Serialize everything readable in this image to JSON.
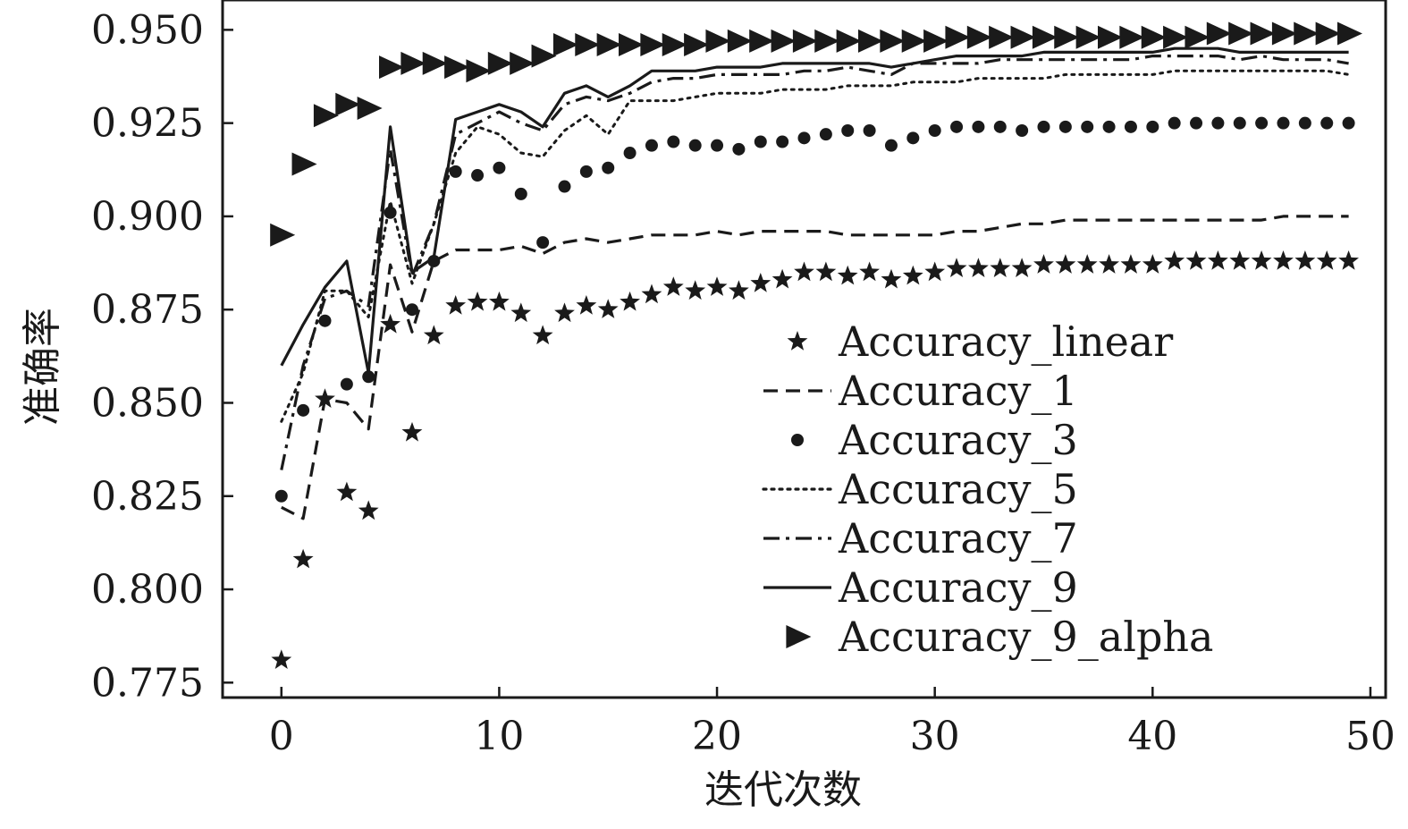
{
  "chart_data": {
    "type": "line",
    "title": "",
    "xlabel": "迭代次数",
    "ylabel": "准确率",
    "xlim": [
      -2.7,
      50.7
    ],
    "ylim": [
      0.771,
      0.958
    ],
    "xticks": [
      0,
      10,
      20,
      30,
      40,
      50
    ],
    "xtick_labels": [
      "0",
      "10",
      "20",
      "30",
      "40",
      "50"
    ],
    "yticks": [
      0.775,
      0.8,
      0.825,
      0.85,
      0.875,
      0.9,
      0.925,
      0.95
    ],
    "ytick_labels": [
      "0.775",
      "0.800",
      "0.825",
      "0.850",
      "0.875",
      "0.900",
      "0.925",
      "0.950"
    ],
    "grid": false,
    "legend_position": "center-right",
    "x": [
      0,
      1,
      2,
      3,
      4,
      5,
      6,
      7,
      8,
      9,
      10,
      11,
      12,
      13,
      14,
      15,
      16,
      17,
      18,
      19,
      20,
      21,
      22,
      23,
      24,
      25,
      26,
      27,
      28,
      29,
      30,
      31,
      32,
      33,
      34,
      35,
      36,
      37,
      38,
      39,
      40,
      41,
      42,
      43,
      44,
      45,
      46,
      47,
      48,
      49
    ],
    "series": [
      {
        "name": "Accuracy_linear",
        "style": "star",
        "values": [
          0.781,
          0.808,
          0.851,
          0.826,
          0.821,
          0.871,
          0.842,
          0.868,
          0.876,
          0.877,
          0.877,
          0.874,
          0.868,
          0.874,
          0.876,
          0.875,
          0.877,
          0.879,
          0.881,
          0.88,
          0.881,
          0.88,
          0.882,
          0.883,
          0.885,
          0.885,
          0.884,
          0.885,
          0.883,
          0.884,
          0.885,
          0.886,
          0.886,
          0.886,
          0.886,
          0.887,
          0.887,
          0.887,
          0.887,
          0.887,
          0.887,
          0.888,
          0.888,
          0.888,
          0.888,
          0.888,
          0.888,
          0.888,
          0.888,
          0.888
        ]
      },
      {
        "name": "Accuracy_1",
        "style": "dashed",
        "values": [
          0.822,
          0.819,
          0.851,
          0.85,
          0.843,
          0.887,
          0.869,
          0.888,
          0.891,
          0.891,
          0.891,
          0.892,
          0.89,
          0.893,
          0.894,
          0.893,
          0.894,
          0.895,
          0.895,
          0.895,
          0.896,
          0.895,
          0.896,
          0.896,
          0.896,
          0.896,
          0.895,
          0.895,
          0.895,
          0.895,
          0.895,
          0.896,
          0.896,
          0.897,
          0.898,
          0.898,
          0.899,
          0.899,
          0.899,
          0.899,
          0.899,
          0.899,
          0.899,
          0.899,
          0.899,
          0.899,
          0.9,
          0.9,
          0.9,
          0.9
        ]
      },
      {
        "name": "Accuracy_3",
        "style": "dot",
        "values": [
          0.825,
          0.848,
          0.872,
          0.855,
          0.857,
          0.901,
          0.875,
          0.888,
          0.912,
          0.911,
          0.913,
          0.906,
          0.893,
          0.908,
          0.912,
          0.913,
          0.917,
          0.919,
          0.92,
          0.919,
          0.919,
          0.918,
          0.92,
          0.92,
          0.921,
          0.922,
          0.923,
          0.923,
          0.919,
          0.921,
          0.923,
          0.924,
          0.924,
          0.924,
          0.923,
          0.924,
          0.924,
          0.924,
          0.924,
          0.924,
          0.924,
          0.925,
          0.925,
          0.925,
          0.925,
          0.925,
          0.925,
          0.925,
          0.925,
          0.925
        ]
      },
      {
        "name": "Accuracy_5",
        "style": "dotted",
        "values": [
          0.845,
          0.858,
          0.88,
          0.88,
          0.873,
          0.904,
          0.882,
          0.898,
          0.917,
          0.924,
          0.922,
          0.917,
          0.916,
          0.923,
          0.927,
          0.922,
          0.931,
          0.931,
          0.931,
          0.932,
          0.933,
          0.933,
          0.933,
          0.934,
          0.934,
          0.934,
          0.935,
          0.935,
          0.935,
          0.936,
          0.936,
          0.936,
          0.937,
          0.937,
          0.937,
          0.937,
          0.938,
          0.938,
          0.938,
          0.938,
          0.938,
          0.939,
          0.939,
          0.939,
          0.939,
          0.939,
          0.939,
          0.939,
          0.939,
          0.938
        ]
      },
      {
        "name": "Accuracy_7",
        "style": "dashdot",
        "values": [
          0.832,
          0.86,
          0.878,
          0.88,
          0.876,
          0.918,
          0.884,
          0.898,
          0.922,
          0.925,
          0.928,
          0.925,
          0.923,
          0.93,
          0.932,
          0.931,
          0.933,
          0.936,
          0.937,
          0.937,
          0.938,
          0.938,
          0.938,
          0.938,
          0.939,
          0.939,
          0.94,
          0.939,
          0.938,
          0.941,
          0.941,
          0.941,
          0.941,
          0.942,
          0.942,
          0.942,
          0.942,
          0.942,
          0.942,
          0.942,
          0.943,
          0.943,
          0.943,
          0.943,
          0.942,
          0.943,
          0.942,
          0.942,
          0.942,
          0.941
        ]
      },
      {
        "name": "Accuracy_9",
        "style": "solid",
        "values": [
          0.86,
          0.871,
          0.881,
          0.888,
          0.858,
          0.924,
          0.885,
          0.889,
          0.926,
          0.928,
          0.93,
          0.928,
          0.924,
          0.933,
          0.935,
          0.932,
          0.935,
          0.939,
          0.939,
          0.939,
          0.94,
          0.94,
          0.94,
          0.941,
          0.941,
          0.941,
          0.941,
          0.941,
          0.94,
          0.941,
          0.942,
          0.943,
          0.943,
          0.943,
          0.943,
          0.944,
          0.944,
          0.944,
          0.944,
          0.944,
          0.944,
          0.945,
          0.945,
          0.945,
          0.944,
          0.944,
          0.944,
          0.944,
          0.944,
          0.944
        ]
      },
      {
        "name": "Accuracy_9_alpha",
        "style": "triangle",
        "values": [
          0.895,
          0.914,
          0.927,
          0.93,
          0.929,
          0.94,
          0.941,
          0.941,
          0.94,
          0.939,
          0.941,
          0.941,
          0.943,
          0.946,
          0.946,
          0.946,
          0.946,
          0.946,
          0.946,
          0.946,
          0.947,
          0.947,
          0.947,
          0.947,
          0.947,
          0.947,
          0.947,
          0.947,
          0.947,
          0.947,
          0.947,
          0.948,
          0.948,
          0.948,
          0.948,
          0.948,
          0.948,
          0.948,
          0.948,
          0.948,
          0.948,
          0.948,
          0.948,
          0.949,
          0.949,
          0.949,
          0.949,
          0.949,
          0.949,
          0.949
        ]
      }
    ]
  },
  "colors": {
    "ink": "#1a1a1a",
    "background": "#ffffff"
  }
}
